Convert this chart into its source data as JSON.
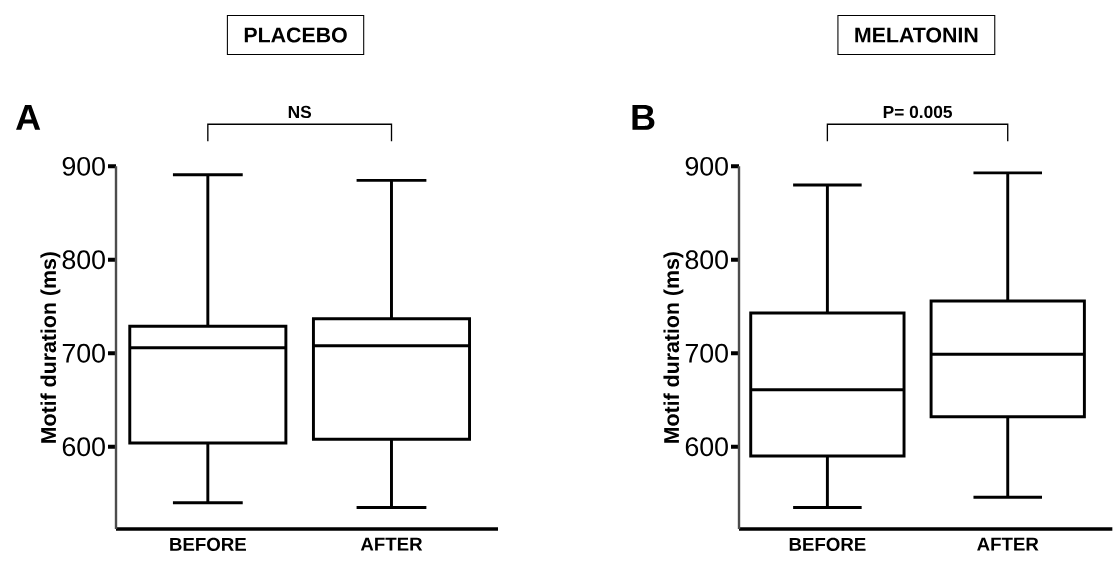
{
  "chart_data": [
    {
      "type": "box",
      "title": "PLACEBO",
      "ylabel": "Motif duration (ms)",
      "categories": [
        "BEFORE",
        "AFTER"
      ],
      "boxes": [
        {
          "low": 540,
          "q1": 604,
          "median": 706,
          "q3": 729,
          "high": 891
        },
        {
          "low": 535,
          "q1": 608,
          "median": 708,
          "q3": 737,
          "high": 885
        }
      ],
      "ylim": [
        512,
        900
      ],
      "yticks": [
        600,
        700,
        800,
        900
      ],
      "annotations": [
        "A",
        "NS"
      ]
    },
    {
      "type": "box",
      "title": "MELATONIN",
      "ylabel": "Motif duration (ms)",
      "categories": [
        "BEFORE",
        "AFTER"
      ],
      "boxes": [
        {
          "low": 535,
          "q1": 590,
          "median": 661,
          "q3": 743,
          "high": 880
        },
        {
          "low": 546,
          "q1": 632,
          "median": 699,
          "q3": 756,
          "high": 893
        }
      ],
      "ylim": [
        512,
        900
      ],
      "yticks": [
        600,
        700,
        800,
        900
      ],
      "annotations": [
        "B",
        "P= 0.005"
      ]
    }
  ]
}
